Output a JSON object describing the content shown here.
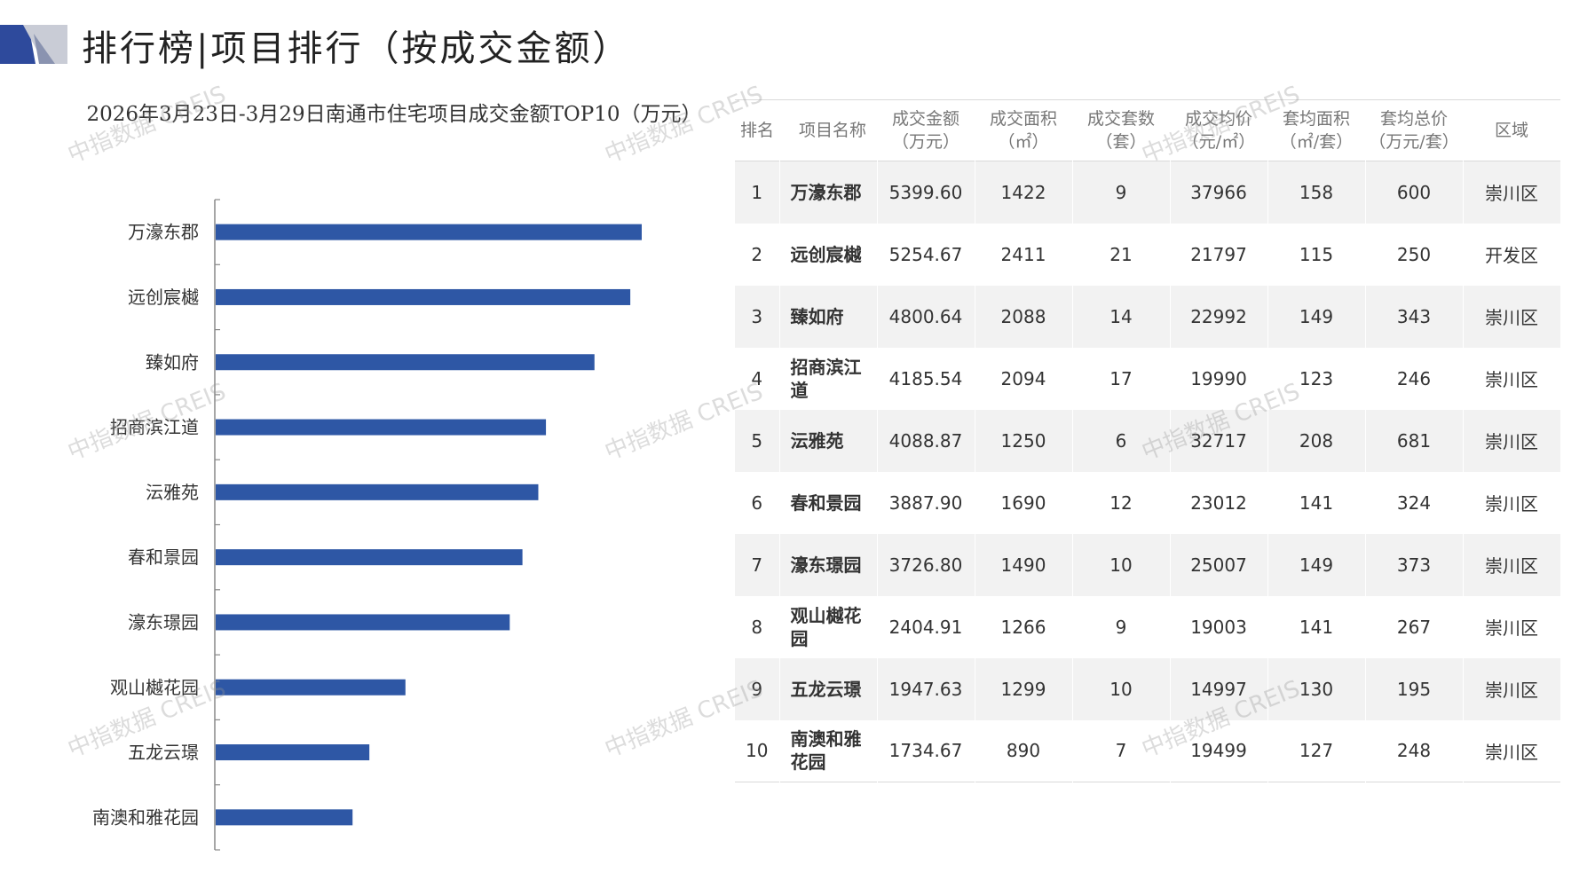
{
  "page_title": "排行榜|项目排行（按成交金额）",
  "watermark": "中指数据 CREIS",
  "colors": {
    "bar": "#2e57a5",
    "axis": "#888888",
    "logo_dark": "#2e4a9c",
    "logo_light": "#c9ccd6"
  },
  "chart_data": {
    "type": "bar",
    "orientation": "horizontal",
    "title": "2026年3月23日-3月29日南通市住宅项目成交金额TOP10（万元）",
    "categories": [
      "万濠东郡",
      "远创宸樾",
      "臻如府",
      "招商滨江道",
      "沄雅苑",
      "春和景园",
      "濠东璟园",
      "观山樾花园",
      "五龙云璟",
      "南澳和雅花园"
    ],
    "values": [
      5399.6,
      5254.67,
      4800.64,
      4185.54,
      4088.87,
      3887.9,
      3726.8,
      2404.91,
      1947.63,
      1734.67
    ],
    "xlim": [
      0,
      6000
    ],
    "grid": false,
    "legend": "none"
  },
  "table": {
    "headers": [
      [
        "排名"
      ],
      [
        "项目名称"
      ],
      [
        "成交金额",
        "（万元）"
      ],
      [
        "成交面积",
        "（㎡）"
      ],
      [
        "成交套数",
        "（套）"
      ],
      [
        "成交均价",
        "（元/㎡）"
      ],
      [
        "套均面积",
        "（㎡/套）"
      ],
      [
        "套均总价",
        "（万元/套）"
      ],
      [
        "区域"
      ]
    ],
    "rows": [
      [
        "1",
        "万濠东郡",
        "5399.60",
        "1422",
        "9",
        "37966",
        "158",
        "600",
        "崇川区"
      ],
      [
        "2",
        "远创宸樾",
        "5254.67",
        "2411",
        "21",
        "21797",
        "115",
        "250",
        "开发区"
      ],
      [
        "3",
        "臻如府",
        "4800.64",
        "2088",
        "14",
        "22992",
        "149",
        "343",
        "崇川区"
      ],
      [
        "4",
        "招商滨江道",
        "4185.54",
        "2094",
        "17",
        "19990",
        "123",
        "246",
        "崇川区"
      ],
      [
        "5",
        "沄雅苑",
        "4088.87",
        "1250",
        "6",
        "32717",
        "208",
        "681",
        "崇川区"
      ],
      [
        "6",
        "春和景园",
        "3887.90",
        "1690",
        "12",
        "23012",
        "141",
        "324",
        "崇川区"
      ],
      [
        "7",
        "濠东璟园",
        "3726.80",
        "1490",
        "10",
        "25007",
        "149",
        "373",
        "崇川区"
      ],
      [
        "8",
        "观山樾花园",
        "2404.91",
        "1266",
        "9",
        "19003",
        "141",
        "267",
        "崇川区"
      ],
      [
        "9",
        "五龙云璟",
        "1947.63",
        "1299",
        "10",
        "14997",
        "130",
        "195",
        "崇川区"
      ],
      [
        "10",
        "南澳和雅花园",
        "1734.67",
        "890",
        "7",
        "19499",
        "127",
        "248",
        "崇川区"
      ]
    ]
  }
}
